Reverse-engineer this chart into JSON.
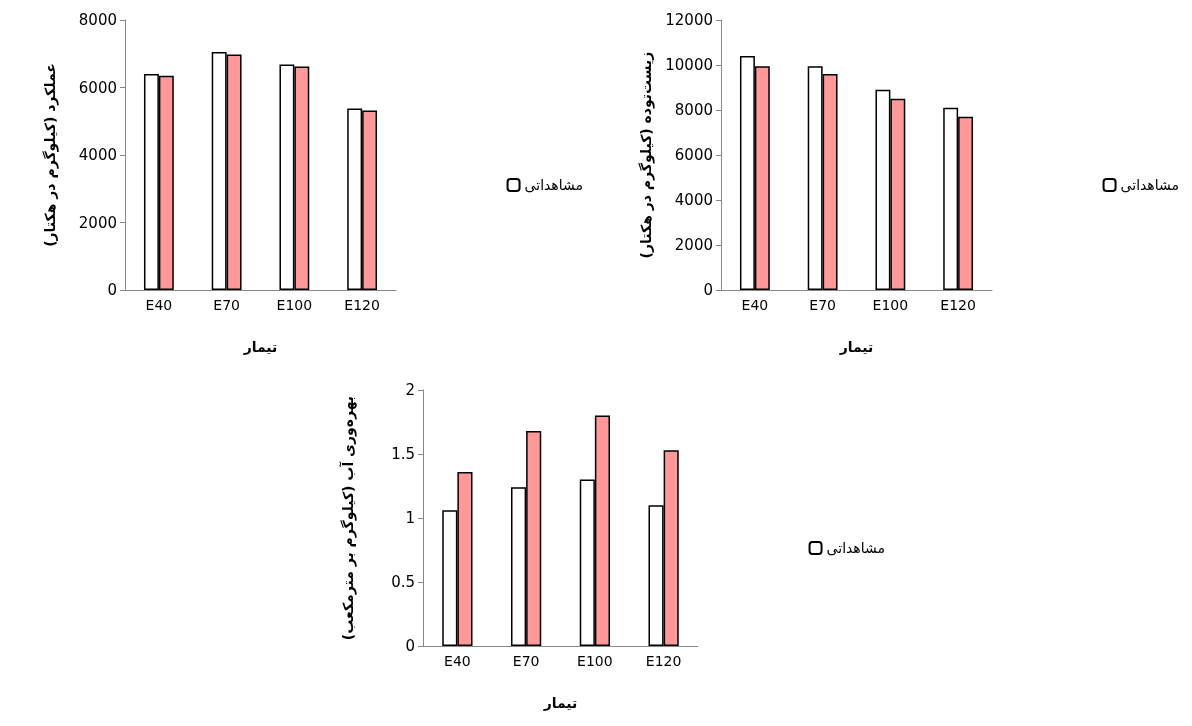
{
  "chart_data": [
    {
      "type": "bar",
      "xlabel": "تیمار",
      "ylabel": "عملکرد (کیلوگرم در هکتار)",
      "categories": [
        "E40",
        "E70",
        "E100",
        "E120"
      ],
      "series": [
        {
          "name": "مشاهداتی",
          "color": "#ffffff",
          "values": [
            6400,
            7050,
            6680,
            5380
          ]
        },
        {
          "color": "#ff9999",
          "values": [
            6350,
            6980,
            6620,
            5320
          ]
        }
      ],
      "ylim": [
        0,
        8000
      ],
      "yticks": [
        0,
        2000,
        4000,
        6000,
        8000
      ],
      "grid": false,
      "legend": "right"
    },
    {
      "type": "bar",
      "xlabel": "تیمار",
      "ylabel": "زیست‌توده (کیلوگرم در هکتار)",
      "categories": [
        "E40",
        "E70",
        "E100",
        "E120"
      ],
      "series": [
        {
          "name": "مشاهداتی",
          "color": "#ffffff",
          "values": [
            10400,
            9950,
            8900,
            8100
          ]
        },
        {
          "color": "#ff9999",
          "values": [
            9950,
            9600,
            8500,
            7700
          ]
        }
      ],
      "ylim": [
        0,
        12000
      ],
      "yticks": [
        0,
        2000,
        4000,
        6000,
        8000,
        10000,
        12000
      ],
      "grid": false,
      "legend": "right"
    },
    {
      "type": "bar",
      "xlabel": "تیمار",
      "ylabel": "بهره‌وری آب (کیلوگرم بر مترمکعب)",
      "categories": [
        "E40",
        "E70",
        "E100",
        "E120"
      ],
      "series": [
        {
          "name": "مشاهداتی",
          "color": "#ffffff",
          "values": [
            1.06,
            1.24,
            1.3,
            1.1
          ]
        },
        {
          "color": "#ff9999",
          "values": [
            1.36,
            1.68,
            1.8,
            1.53
          ]
        }
      ],
      "ylim": [
        0,
        2
      ],
      "yticks": [
        0,
        0.5,
        1,
        1.5,
        2
      ],
      "grid": false,
      "legend": "right"
    }
  ]
}
